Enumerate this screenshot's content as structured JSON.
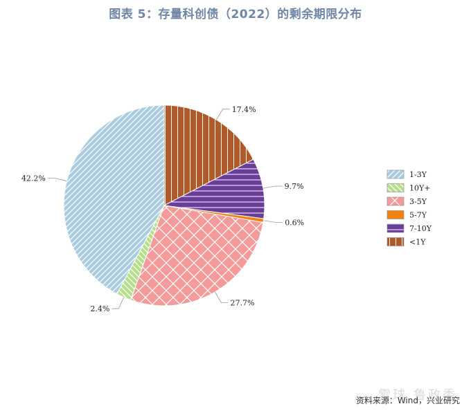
{
  "chart_data": {
    "type": "pie",
    "title": "图表 5：存量科创债（2022）的剩余期限分布",
    "categories": [
      "1-3Y",
      "10Y+",
      "3-5Y",
      "5-7Y",
      "7-10Y",
      "<1Y"
    ],
    "values": [
      42.2,
      2.4,
      27.7,
      0.6,
      9.7,
      17.4
    ],
    "data_labels": [
      "42.2%",
      "2.4%",
      "27.7%",
      "0.6%",
      "9.7%",
      "17.4%"
    ],
    "colors": {
      "1-3Y": "#a9cce0",
      "10Y+": "#b5df8a",
      "3-5Y": "#f59a9a",
      "5-7Y": "#f5820f",
      "7-10Y": "#6a3d9a",
      "<1Y": "#b15928"
    },
    "patterns": {
      "1-3Y": "diag-back",
      "10Y+": "diag-fwd",
      "3-5Y": "cross",
      "5-7Y": "none",
      "7-10Y": "horizontal",
      "<1Y": "vertical"
    },
    "legend_position": "right",
    "slice_order": [
      "<1Y",
      "7-10Y",
      "5-7Y",
      "3-5Y",
      "10Y+",
      "1-3Y"
    ]
  },
  "source": "资料来源：Wind，兴业研究",
  "watermark": "雪球  鲁政委"
}
